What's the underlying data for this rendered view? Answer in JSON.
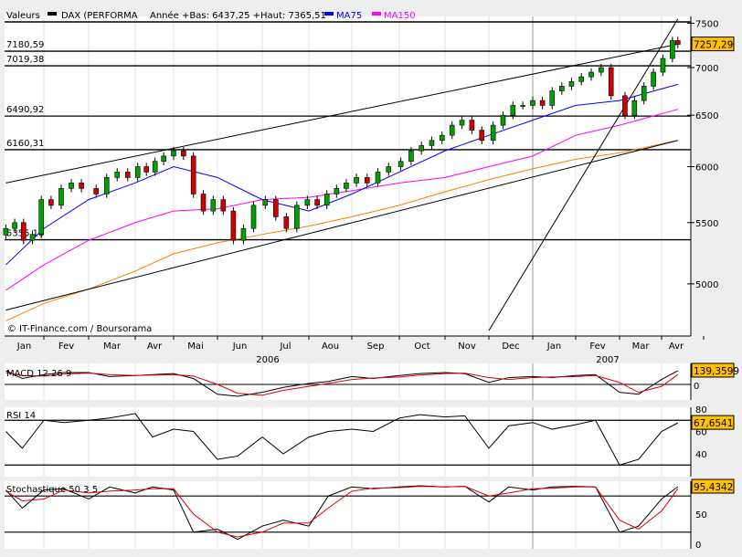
{
  "legend": {
    "label": "Valeurs",
    "series_name": "DAX (PERFORMA",
    "range_text": "Année +Bas: 6437,25 +Haut: 7365,51",
    "ma75": "MA75",
    "ma150": "MA150"
  },
  "colors": {
    "up": "#00a000",
    "down": "#d00000",
    "ma75": "#0000ff",
    "ma150": "#ff00ff",
    "ma_long": "#ff7f00",
    "value_box": "#ffc000",
    "signal": "#dd0000"
  },
  "credit": "© IT-Finance.com / Boursorama",
  "levels": [
    {
      "label": "7180,59",
      "value": 7180.59
    },
    {
      "label": "7019,38",
      "value": 7019.38
    },
    {
      "label": "6490,92",
      "value": 6490.92
    },
    {
      "label": "6160,31",
      "value": 6160.31
    },
    {
      "label": "5355,18",
      "value": 5355.18
    }
  ],
  "months": [
    "Jan",
    "Fev",
    "Mar",
    "Avr",
    "Mai",
    "Jun",
    "Jul",
    "Aou",
    "Sep",
    "Oct",
    "Nov",
    "Dec",
    "Jan",
    "Fev",
    "Mar",
    "Avr"
  ],
  "years": [
    "2006",
    "2007"
  ],
  "chart_data": [
    {
      "type": "candlestick",
      "title": "DAX (PERFORMA",
      "yscale": "log",
      "ylim": [
        4650,
        7600
      ],
      "yticks": [
        5000,
        5500,
        6000,
        6500,
        7000,
        7500
      ],
      "ytick_labels": [
        "5000",
        "5500",
        "6000",
        "6500",
        "7000",
        "7500"
      ],
      "last_value": "7257,29",
      "grid": true,
      "x": [
        "2006-01-02",
        "2006-01-09",
        "2006-01-16",
        "2006-01-23",
        "2006-01-30",
        "2006-02-06",
        "2006-02-13",
        "2006-02-20",
        "2006-02-27",
        "2006-03-06",
        "2006-03-13",
        "2006-03-20",
        "2006-03-27",
        "2006-04-03",
        "2006-04-10",
        "2006-04-17",
        "2006-04-24",
        "2006-05-01",
        "2006-05-08",
        "2006-05-15",
        "2006-05-22",
        "2006-05-29",
        "2006-06-05",
        "2006-06-12",
        "2006-06-19",
        "2006-06-26",
        "2006-07-03",
        "2006-07-10",
        "2006-07-17",
        "2006-07-24",
        "2006-07-31",
        "2006-08-07",
        "2006-08-14",
        "2006-08-21",
        "2006-08-28",
        "2006-09-04",
        "2006-09-11",
        "2006-09-18",
        "2006-09-25",
        "2006-10-02",
        "2006-10-09",
        "2006-10-16",
        "2006-10-23",
        "2006-10-30",
        "2006-11-06",
        "2006-11-13",
        "2006-11-20",
        "2006-11-27",
        "2006-12-04",
        "2006-12-11",
        "2006-12-18",
        "2006-12-25",
        "2007-01-01",
        "2007-01-08",
        "2007-01-15",
        "2007-01-22",
        "2007-01-29",
        "2007-02-05",
        "2007-02-12",
        "2007-02-19",
        "2007-02-26",
        "2007-03-05",
        "2007-03-12",
        "2007-03-19",
        "2007-03-26",
        "2007-04-02",
        "2007-04-09",
        "2007-04-13"
      ],
      "close": [
        5450,
        5500,
        5350,
        5400,
        5700,
        5650,
        5800,
        5850,
        5800,
        5750,
        5900,
        5950,
        5900,
        6000,
        5950,
        6050,
        6100,
        6150,
        6100,
        5750,
        5600,
        5700,
        5600,
        5350,
        5450,
        5650,
        5700,
        5550,
        5450,
        5650,
        5700,
        5650,
        5750,
        5800,
        5850,
        5900,
        5850,
        5950,
        6000,
        6050,
        6150,
        6200,
        6250,
        6300,
        6400,
        6450,
        6350,
        6250,
        6400,
        6500,
        6600,
        6600,
        6650,
        6600,
        6750,
        6800,
        6850,
        6900,
        6950,
        7000,
        6700,
        6500,
        6650,
        6800,
        6950,
        7100,
        7300,
        7257.29
      ],
      "ma_x": [
        "2006-01-02",
        "2006-02-01",
        "2006-03-01",
        "2006-04-01",
        "2006-05-01",
        "2006-06-01",
        "2006-07-01",
        "2006-08-01",
        "2006-09-01",
        "2006-10-01",
        "2006-11-01",
        "2006-12-01",
        "2007-01-01",
        "2007-02-01",
        "2007-03-01",
        "2007-04-13"
      ],
      "ma75": [
        5150,
        5450,
        5700,
        5850,
        6000,
        5900,
        5700,
        5600,
        5750,
        5950,
        6150,
        6300,
        6450,
        6600,
        6650,
        6820
      ],
      "ma150": [
        4950,
        5150,
        5350,
        5500,
        5600,
        5620,
        5700,
        5720,
        5780,
        5850,
        5900,
        6000,
        6100,
        6300,
        6400,
        6560
      ],
      "ma_long": [
        4720,
        4850,
        4960,
        5100,
        5240,
        5330,
        5400,
        5470,
        5550,
        5650,
        5770,
        5880,
        5980,
        6070,
        6130,
        6250
      ],
      "trendlines": [
        {
          "from": [
            "2006-01-02",
            5850
          ],
          "to": [
            "2007-04-13",
            7260
          ]
        },
        {
          "from": [
            "2006-01-02",
            4800
          ],
          "to": [
            "2007-04-13",
            6250
          ]
        },
        {
          "from": [
            "2006-12-01",
            4650
          ],
          "to": [
            "2007-04-13",
            7550
          ]
        }
      ]
    },
    {
      "type": "line",
      "title": "MACD 12 26 9",
      "last_value": "139,3599",
      "ytick_labels": [
        "0"
      ],
      "ylim": [
        -150,
        200
      ],
      "x": [
        "2006-01-02",
        "2006-01-15",
        "2006-02-01",
        "2006-02-15",
        "2006-03-01",
        "2006-03-15",
        "2006-04-01",
        "2006-04-15",
        "2006-05-01",
        "2006-05-15",
        "2006-06-01",
        "2006-06-15",
        "2006-07-01",
        "2006-07-15",
        "2006-08-01",
        "2006-08-15",
        "2006-09-01",
        "2006-09-15",
        "2006-10-01",
        "2006-10-15",
        "2006-11-01",
        "2006-11-15",
        "2006-12-01",
        "2006-12-15",
        "2007-01-01",
        "2007-01-15",
        "2007-02-01",
        "2007-02-15",
        "2007-03-01",
        "2007-03-15",
        "2007-04-01",
        "2007-04-13"
      ],
      "macd": [
        140,
        60,
        100,
        120,
        120,
        80,
        90,
        100,
        110,
        60,
        -100,
        -120,
        -80,
        -30,
        10,
        30,
        80,
        60,
        90,
        110,
        120,
        110,
        20,
        70,
        80,
        70,
        90,
        100,
        -80,
        -100,
        50,
        139.36
      ],
      "signal": [
        120,
        90,
        85,
        105,
        115,
        100,
        90,
        95,
        100,
        85,
        0,
        -90,
        -110,
        -60,
        -20,
        10,
        50,
        65,
        75,
        95,
        110,
        115,
        70,
        50,
        70,
        75,
        80,
        90,
        20,
        -80,
        -20,
        100
      ]
    },
    {
      "type": "line",
      "title": "RSI 14",
      "last_value": "67,6541",
      "ylim": [
        18,
        82
      ],
      "yticks": [
        40,
        60,
        80
      ],
      "ytick_labels": [
        "40",
        "60",
        "80"
      ],
      "levels": [
        30,
        70
      ],
      "values": [
        60,
        45,
        70,
        68,
        70,
        72,
        76,
        55,
        62,
        60,
        35,
        38,
        55,
        40,
        55,
        60,
        62,
        60,
        72,
        75,
        73,
        74,
        45,
        65,
        68,
        62,
        66,
        70,
        30,
        35,
        60,
        67.65
      ]
    },
    {
      "type": "line",
      "title": "Stochastique 50 3 5",
      "last_value": "95,4342",
      "ylim": [
        0,
        100
      ],
      "yticks": [
        0,
        50
      ],
      "ytick_labels": [
        "0",
        "50"
      ],
      "levels": [
        20,
        80
      ],
      "k": [
        90,
        60,
        90,
        92,
        75,
        95,
        85,
        95,
        90,
        20,
        25,
        8,
        30,
        40,
        30,
        80,
        95,
        92,
        95,
        97,
        95,
        96,
        70,
        95,
        90,
        95,
        96,
        95,
        20,
        30,
        75,
        95.43
      ],
      "d": [
        88,
        72,
        75,
        90,
        85,
        88,
        90,
        92,
        92,
        50,
        20,
        12,
        20,
        35,
        35,
        60,
        88,
        93,
        94,
        96,
        95,
        96,
        80,
        85,
        92,
        93,
        95,
        95,
        40,
        25,
        55,
        92
      ]
    }
  ]
}
